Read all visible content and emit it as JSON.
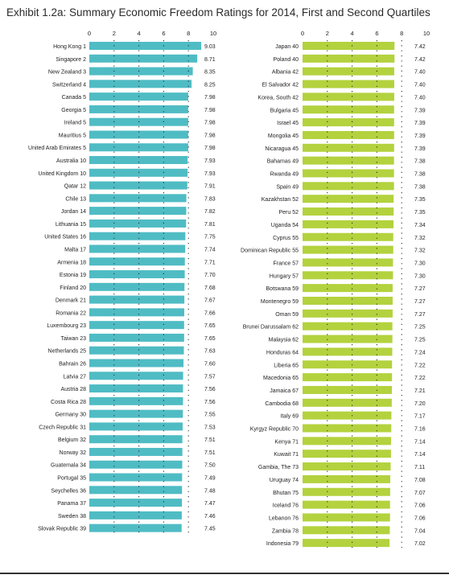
{
  "title": "Exhibit 1.2a: Summary Economic Freedom Ratings for 2014, First and Second Quartiles",
  "colors": {
    "left_bar": "#4fbcc4",
    "right_bar": "#b3d23e"
  },
  "chart_data": [
    {
      "type": "bar",
      "orientation": "horizontal",
      "xlim": [
        0,
        10
      ],
      "xticks": [
        0,
        2,
        4,
        6,
        8,
        10
      ],
      "categories": [
        "Hong Kong 1",
        "Singapore 2",
        "New Zealand 3",
        "Switzerland 4",
        "Canada 5",
        "Georgia 5",
        "Ireland 5",
        "Mauritius 5",
        "United Arab Emirates 5",
        "Australia 10",
        "United Kingdom 10",
        "Qatar 12",
        "Chile 13",
        "Jordan 14",
        "Lithuania 15",
        "United States 16",
        "Malta 17",
        "Armenia 18",
        "Estonia 19",
        "Finland 20",
        "Denmark 21",
        "Romania 22",
        "Luxembourg 23",
        "Taiwan 23",
        "Netherlands 25",
        "Bahrain 26",
        "Latvia 27",
        "Austria 28",
        "Costa Rica 28",
        "Germany 30",
        "Czech Republic 31",
        "Belgium 32",
        "Norway 32",
        "Guatemala 34",
        "Portugal 35",
        "Seychelles 36",
        "Panama 37",
        "Sweden 38",
        "Slovak Republic 39"
      ],
      "values": [
        9.03,
        8.71,
        8.35,
        8.25,
        7.98,
        7.98,
        7.98,
        7.98,
        7.98,
        7.93,
        7.93,
        7.91,
        7.83,
        7.82,
        7.81,
        7.75,
        7.74,
        7.71,
        7.7,
        7.68,
        7.67,
        7.66,
        7.65,
        7.65,
        7.63,
        7.6,
        7.57,
        7.56,
        7.56,
        7.55,
        7.53,
        7.51,
        7.51,
        7.5,
        7.49,
        7.48,
        7.47,
        7.46,
        7.45
      ],
      "value_labels": [
        "9.03",
        "8.71",
        "8.35",
        "8.25",
        "7.98",
        "7.98",
        "7.98",
        "7.98",
        "7.98",
        "7.93",
        "7.93",
        "7.91",
        "7.83",
        "7.82",
        "7.81",
        "7.75",
        "7.74",
        "7.71",
        "7.70",
        "7.68",
        "7.67",
        "7.66",
        "7.65",
        "7.65",
        "7.63",
        "7.60",
        "7.57",
        "7.56",
        "7.56",
        "7.55",
        "7.53",
        "7.51",
        "7.51",
        "7.50",
        "7.49",
        "7.48",
        "7.47",
        "7.46",
        "7.45"
      ]
    },
    {
      "type": "bar",
      "orientation": "horizontal",
      "xlim": [
        0,
        10
      ],
      "xticks": [
        0,
        2,
        4,
        6,
        8,
        10
      ],
      "categories": [
        "Japan 40",
        "Poland 40",
        "Albania 42",
        "El Salvador 42",
        "Korea, South 42",
        "Bulgaria 45",
        "Israel 45",
        "Mongolia 45",
        "Nicaragua 45",
        "Bahamas 49",
        "Rwanda 49",
        "Spain 49",
        "Kazakhstan 52",
        "Peru 52",
        "Uganda 54",
        "Cyprus 55",
        "Dominican Republic 55",
        "France 57",
        "Hungary 57",
        "Botswana 59",
        "Montenegro 59",
        "Oman 59",
        "Brunei Darussalam 62",
        "Malaysia 62",
        "Honduras 64",
        "Liberia 65",
        "Macedonia 65",
        "Jamaica 67",
        "Cambodia 68",
        "Italy 69",
        "Kyrgyz Republic 70",
        "Kenya 71",
        "Kuwait 71",
        "Gambia, The 73",
        "Uruguay 74",
        "Bhutan 75",
        "Iceland 76",
        "Lebanon 76",
        "Zambia 78",
        "Indonesia 79"
      ],
      "values": [
        7.42,
        7.42,
        7.4,
        7.4,
        7.4,
        7.39,
        7.39,
        7.39,
        7.39,
        7.38,
        7.38,
        7.38,
        7.35,
        7.35,
        7.34,
        7.32,
        7.32,
        7.3,
        7.3,
        7.27,
        7.27,
        7.27,
        7.25,
        7.25,
        7.24,
        7.22,
        7.22,
        7.21,
        7.2,
        7.17,
        7.16,
        7.14,
        7.14,
        7.11,
        7.08,
        7.07,
        7.06,
        7.06,
        7.04,
        7.02
      ],
      "value_labels": [
        "7.42",
        "7.42",
        "7.40",
        "7.40",
        "7.40",
        "7.39",
        "7.39",
        "7.39",
        "7.39",
        "7.38",
        "7.38",
        "7.38",
        "7.35",
        "7.35",
        "7.34",
        "7.32",
        "7.32",
        "7.30",
        "7.30",
        "7.27",
        "7.27",
        "7.27",
        "7.25",
        "7.25",
        "7.24",
        "7.22",
        "7.22",
        "7.21",
        "7.20",
        "7.17",
        "7.16",
        "7.14",
        "7.14",
        "7.11",
        "7.08",
        "7.07",
        "7.06",
        "7.06",
        "7.04",
        "7.02"
      ]
    }
  ]
}
